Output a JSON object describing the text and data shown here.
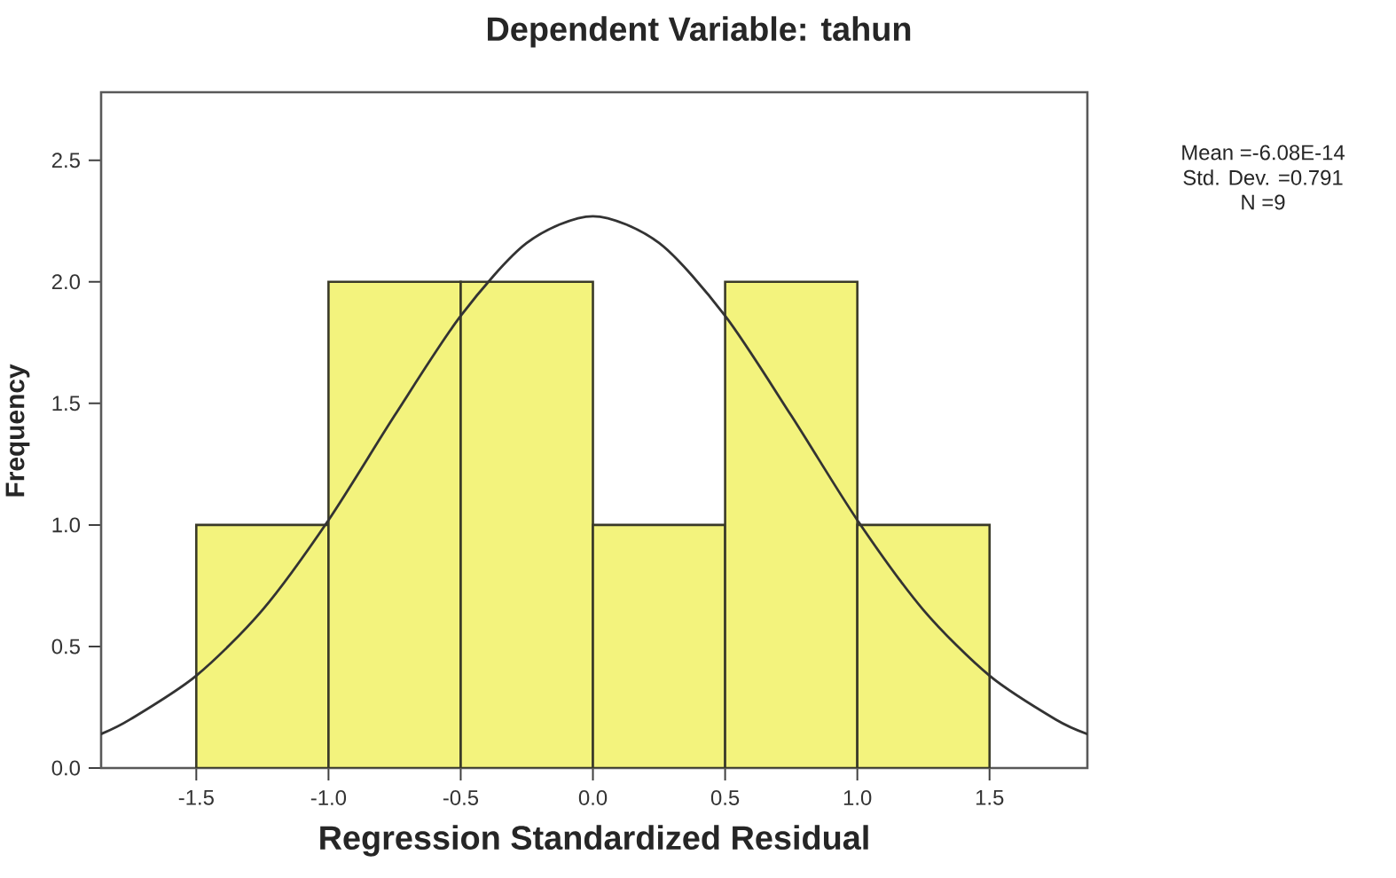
{
  "chart_data": {
    "type": "histogram",
    "title": "Dependent Variable: tahun",
    "xlabel": "Regression Standardized Residual",
    "ylabel": "Frequency",
    "annotations": [
      "Mean =-6.08E-14",
      "Std. Dev. =0.791",
      "N =9"
    ],
    "series": [
      {
        "bins": [
          -1.5,
          -1.0,
          -0.5,
          0.0,
          0.5,
          1.0,
          1.5
        ],
        "values": [
          1,
          2,
          2,
          1,
          2,
          1
        ],
        "color": "#f3f37d"
      },
      {
        "type": "line",
        "color": "#333333",
        "x": [
          -1.86,
          -1.75,
          -1.5,
          -1.25,
          -1.0,
          -0.75,
          -0.5,
          -0.25,
          0.0,
          0.25,
          0.5,
          0.75,
          1.0,
          1.25,
          1.5,
          1.75,
          1.87
        ],
        "values": [
          0.14,
          0.2,
          0.38,
          0.65,
          1.02,
          1.45,
          1.86,
          2.16,
          2.27,
          2.16,
          1.86,
          1.45,
          1.02,
          0.65,
          0.38,
          0.2,
          0.14
        ]
      }
    ],
    "xlim": [
      -1.86,
      1.87
    ],
    "ylim": [
      0,
      2.78
    ],
    "xticks": [
      -1.5,
      {
        "value": -1.0,
        "label": "-1.0"
      },
      -0.5,
      {
        "value": 0.0,
        "label": "0.0"
      },
      0.5,
      {
        "value": 1.0,
        "label": "1.0"
      },
      1.5
    ],
    "yticks": [
      {
        "value": 0.0,
        "label": "0.0"
      },
      0.5,
      {
        "value": 1.0,
        "label": "1.0"
      },
      1.5,
      {
        "value": 2.0,
        "label": "2.0"
      },
      2.5
    ],
    "grid": false
  }
}
